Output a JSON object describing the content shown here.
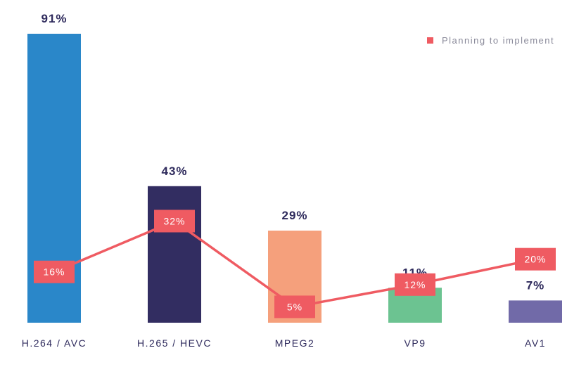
{
  "chart_data": {
    "type": "bar",
    "categories": [
      "H.264 / AVC",
      "H.265 / HEVC",
      "MPEG2",
      "VP9",
      "AV1"
    ],
    "series": [
      {
        "type": "bar",
        "values": [
          91,
          43,
          29,
          11,
          7
        ],
        "labels": [
          "91%",
          "43%",
          "29%",
          "11%",
          "7%"
        ],
        "colors": [
          "#2a87c9",
          "#322d61",
          "#f5a07c",
          "#6cc391",
          "#716aa8"
        ]
      },
      {
        "type": "line",
        "name": "Planning to implement",
        "values": [
          16,
          32,
          5,
          12,
          20
        ],
        "labels": [
          "16%",
          "32%",
          "5%",
          "12%",
          "20%"
        ],
        "color": "#ef5b62"
      }
    ],
    "ylim": [
      0,
      91
    ],
    "legend": {
      "position": "top-right",
      "label": "Planning to implement"
    }
  }
}
